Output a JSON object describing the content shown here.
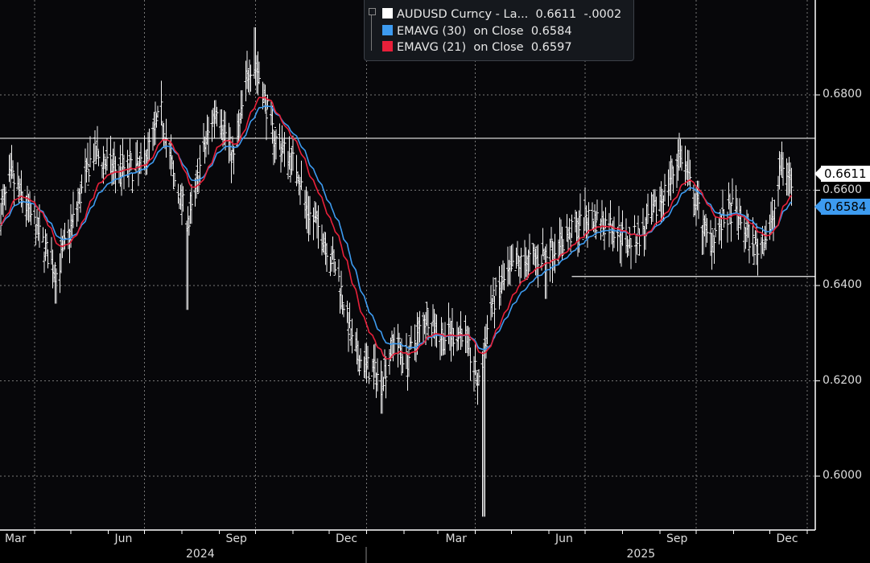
{
  "legend": {
    "series_main": "AUDUSD Curncy - La...",
    "main_last": "0.6611",
    "main_change": "-.0002",
    "ema30_label": "EMAVG (30)",
    "ema30_on": "on Close",
    "ema30_value": "0.6584",
    "ema21_label": "EMAVG (21)",
    "ema21_on": "on Close",
    "ema21_value": "0.6597"
  },
  "price_tags": {
    "last": "0.6611",
    "ema30": "0.6584"
  },
  "colors": {
    "price": "#ffffff",
    "ema30": "#3d9bf0",
    "ema21": "#e8203a",
    "background": "#000000"
  },
  "chart_data": {
    "type": "line",
    "title": "AUDUSD Curncy",
    "ylim": [
      0.5887,
      0.6999
    ],
    "xlim": [
      "2024-03-03",
      "2026-01-08"
    ],
    "y_ticks": [
      "0.6000",
      "0.6200",
      "0.6400",
      "0.6600",
      "0.6800"
    ],
    "x_ticks": [
      {
        "label": "Mar",
        "date": "2024-03-16"
      },
      {
        "label": "Jun",
        "date": "2024-06-15"
      },
      {
        "label": "Sep",
        "date": "2024-09-15"
      },
      {
        "label": "Dec",
        "date": "2024-12-15"
      },
      {
        "label": "Mar",
        "date": "2025-03-16"
      },
      {
        "label": "Jun",
        "date": "2025-06-15"
      },
      {
        "label": "Sep",
        "date": "2025-09-15"
      },
      {
        "label": "Dec",
        "date": "2025-12-15"
      }
    ],
    "year_labels": [
      {
        "label": "2024",
        "date": "2024-08-15"
      },
      {
        "label": "2025",
        "date": "2025-08-15"
      }
    ],
    "grid": true,
    "horizontal_lines": [
      {
        "value": 0.6709,
        "from": "2024-03-03"
      },
      {
        "value": 0.6419,
        "from": "2025-06-20"
      }
    ],
    "series": [
      {
        "name": "AUDUSD Curncy (close)",
        "dates": [
          "2024-03-03",
          "2024-03-13",
          "2024-03-30",
          "2024-04-19",
          "2024-05-02",
          "2024-05-19",
          "2024-06-05",
          "2024-06-28",
          "2024-07-15",
          "2024-07-25",
          "2024-08-07",
          "2024-08-17",
          "2024-08-30",
          "2024-09-13",
          "2024-09-26",
          "2024-10-03",
          "2024-10-16",
          "2024-11-05",
          "2024-11-12",
          "2024-11-25",
          "2024-12-08",
          "2024-12-22",
          "2025-01-04",
          "2025-01-14",
          "2025-01-24",
          "2025-02-03",
          "2025-02-20",
          "2025-03-05",
          "2025-03-22",
          "2025-04-04",
          "2025-04-14",
          "2025-05-04",
          "2025-05-24",
          "2025-06-13",
          "2025-07-03",
          "2025-07-23",
          "2025-08-05",
          "2025-08-19",
          "2025-09-08",
          "2025-09-18",
          "2025-09-28",
          "2025-10-11",
          "2025-10-31",
          "2025-11-20",
          "2025-12-03",
          "2025-12-11",
          "2025-12-20"
        ],
        "values": [
          0.6543,
          0.6628,
          0.654,
          0.6425,
          0.6527,
          0.6678,
          0.6645,
          0.6645,
          0.6763,
          0.6628,
          0.6527,
          0.6662,
          0.678,
          0.6662,
          0.6864,
          0.685,
          0.6712,
          0.6645,
          0.656,
          0.651,
          0.6425,
          0.6256,
          0.6223,
          0.6206,
          0.629,
          0.624,
          0.634,
          0.629,
          0.6307,
          0.619,
          0.6358,
          0.6442,
          0.6459,
          0.6493,
          0.6543,
          0.6527,
          0.6493,
          0.651,
          0.6611,
          0.6678,
          0.6594,
          0.6493,
          0.656,
          0.6476,
          0.6527,
          0.6662,
          0.6611
        ]
      },
      {
        "name": "EMAVG (30) on Close",
        "last": 0.6584
      },
      {
        "name": "EMAVG (21) on Close",
        "last": 0.6597
      }
    ],
    "notable_lows": [
      {
        "date": "2024-04-19",
        "value": 0.6362
      },
      {
        "date": "2024-08-05",
        "value": 0.6349
      },
      {
        "date": "2025-01-13",
        "value": 0.6131
      },
      {
        "date": "2025-04-08",
        "value": 0.5915
      },
      {
        "date": "2025-05-30",
        "value": 0.6372
      }
    ],
    "notable_highs": [
      {
        "date": "2024-09-30",
        "value": 0.6942
      },
      {
        "date": "2025-09-17",
        "value": 0.6707
      }
    ]
  }
}
